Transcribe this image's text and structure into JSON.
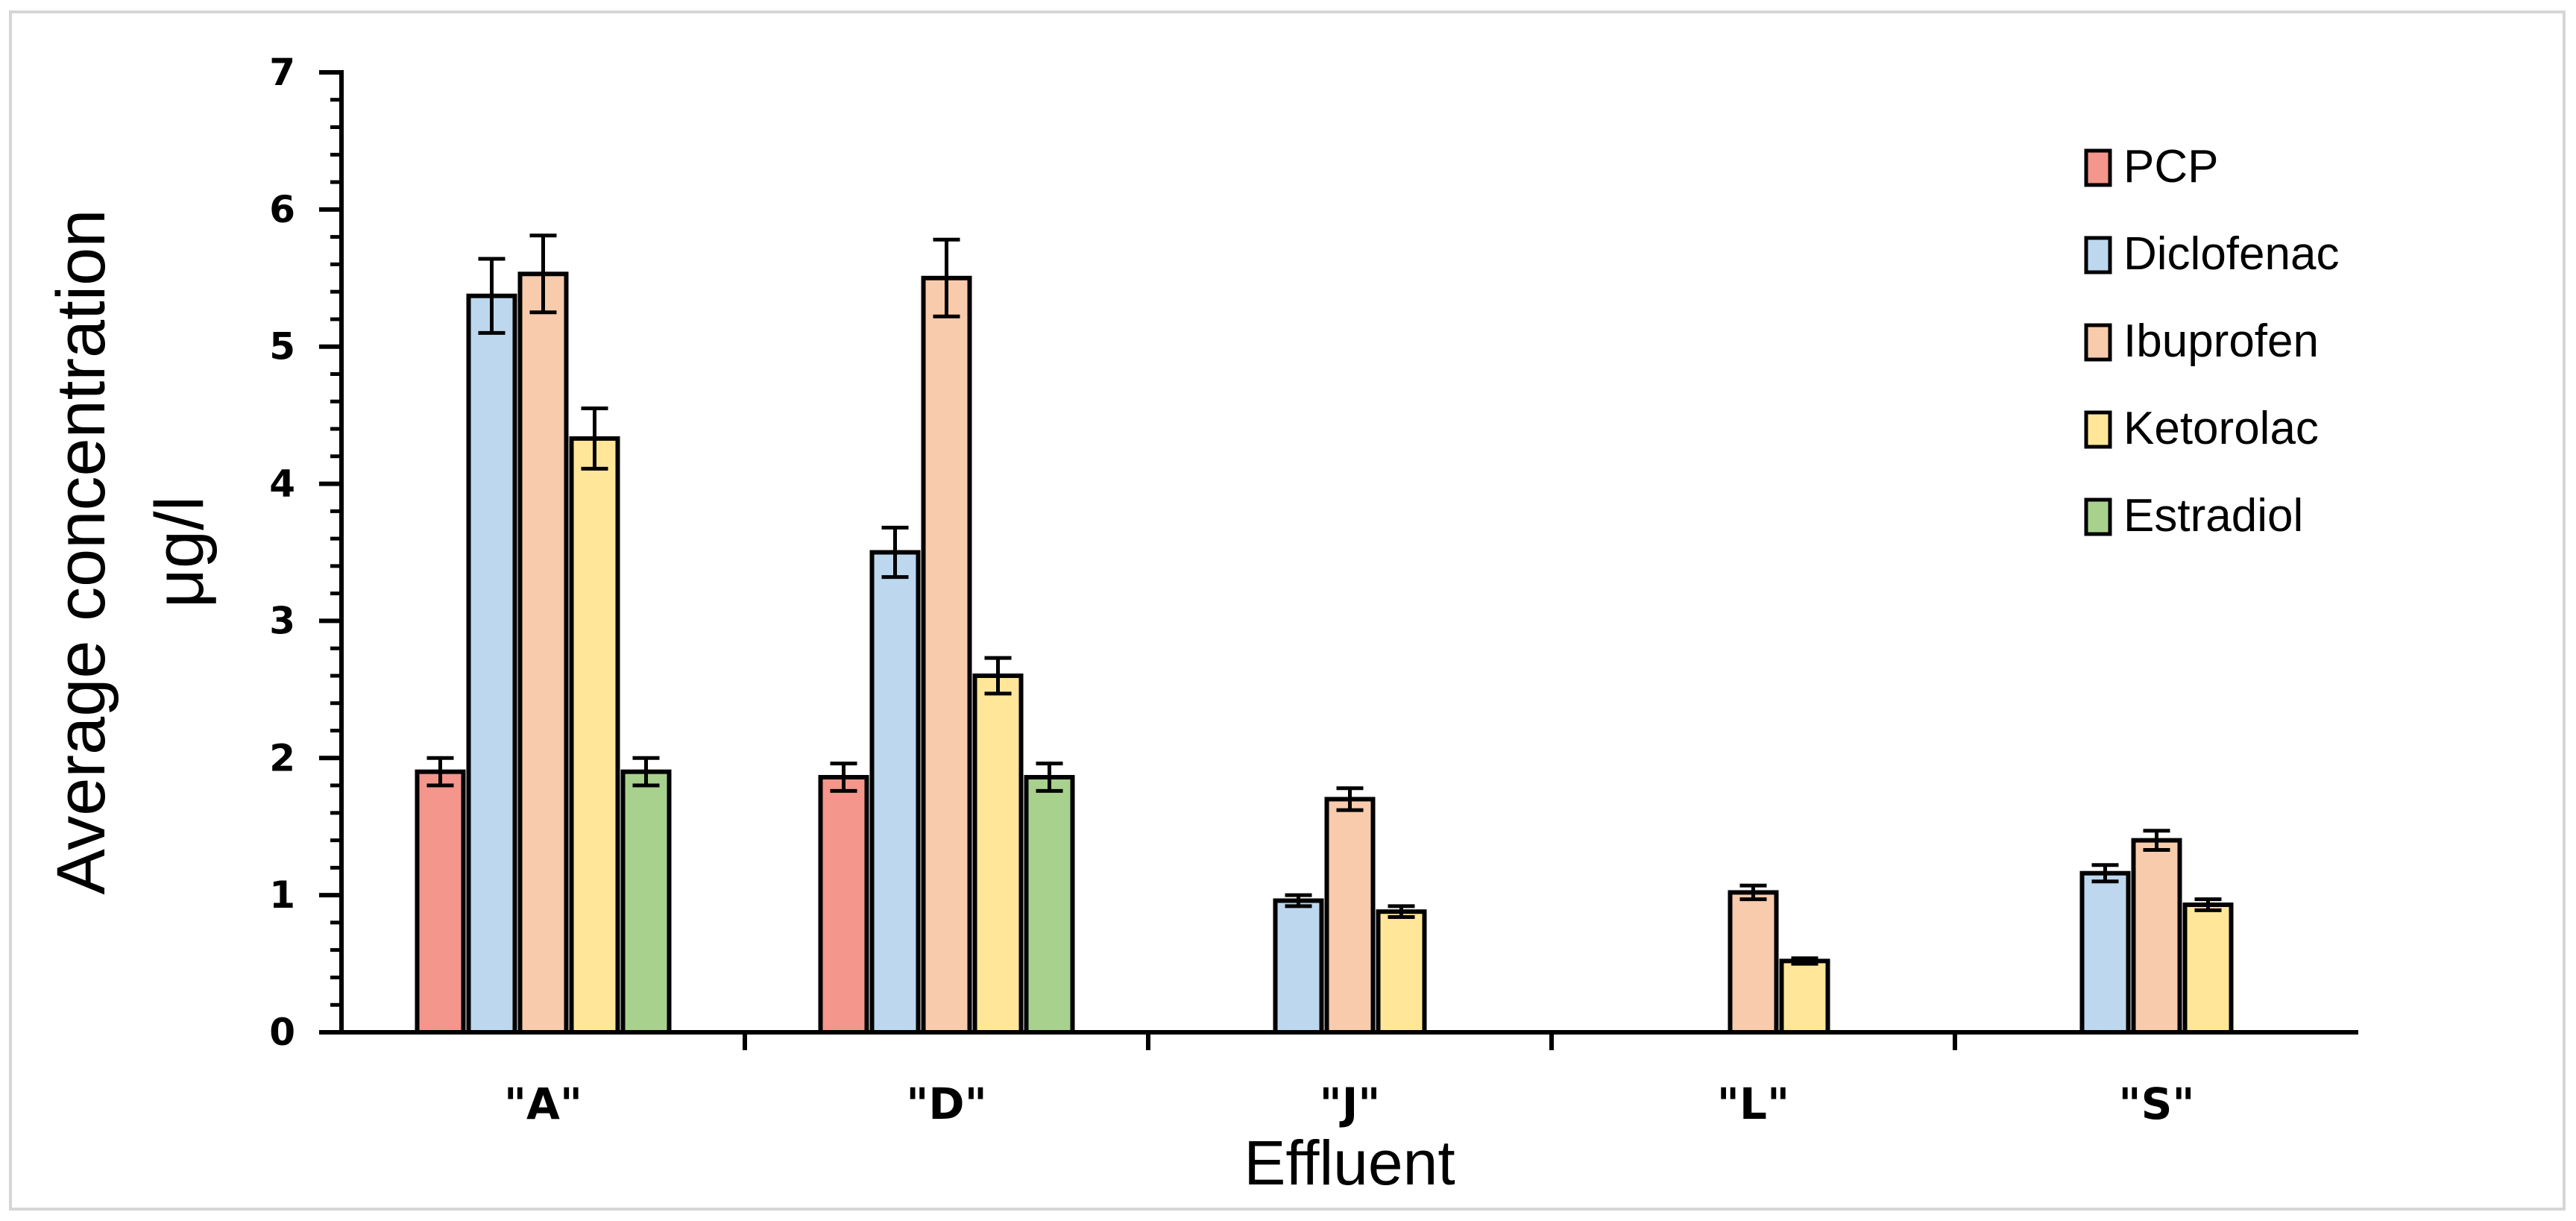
{
  "chart_data": {
    "type": "bar",
    "title": "",
    "xlabel": "Effluent",
    "ylabel_lines": [
      "Average concentration",
      "μg/l"
    ],
    "ylim": [
      0,
      7
    ],
    "yticks": [
      "0",
      "1",
      "2",
      "3",
      "4",
      "5",
      "6",
      "7"
    ],
    "minor_ticks_per_major": 5,
    "categories": [
      "\"A\"",
      "\"D\"",
      "\"J\"",
      "\"L\"",
      "\"S\""
    ],
    "legend_position": "top-right",
    "grid": false,
    "series": [
      {
        "name": "PCP",
        "color": "#f4968b",
        "values": [
          1.9,
          1.86,
          null,
          null,
          null
        ],
        "errors": [
          0.1,
          0.1,
          null,
          null,
          null
        ]
      },
      {
        "name": "Diclofenac",
        "color": "#bdd7ee",
        "values": [
          5.37,
          3.5,
          0.96,
          null,
          1.16
        ],
        "errors": [
          0.27,
          0.18,
          0.04,
          null,
          0.06
        ]
      },
      {
        "name": "Ibuprofen",
        "color": "#f8cbad",
        "values": [
          5.53,
          5.5,
          1.7,
          1.02,
          1.4
        ],
        "errors": [
          0.28,
          0.28,
          0.08,
          0.05,
          0.07
        ]
      },
      {
        "name": "Ketorolac",
        "color": "#ffe699",
        "values": [
          4.33,
          2.6,
          0.88,
          0.52,
          0.93
        ],
        "errors": [
          0.22,
          0.13,
          0.04,
          0.02,
          0.04
        ]
      },
      {
        "name": "Estradiol",
        "color": "#a9d18e",
        "values": [
          1.9,
          1.86,
          null,
          null,
          null
        ],
        "errors": [
          0.1,
          0.1,
          null,
          null,
          null
        ]
      }
    ]
  }
}
